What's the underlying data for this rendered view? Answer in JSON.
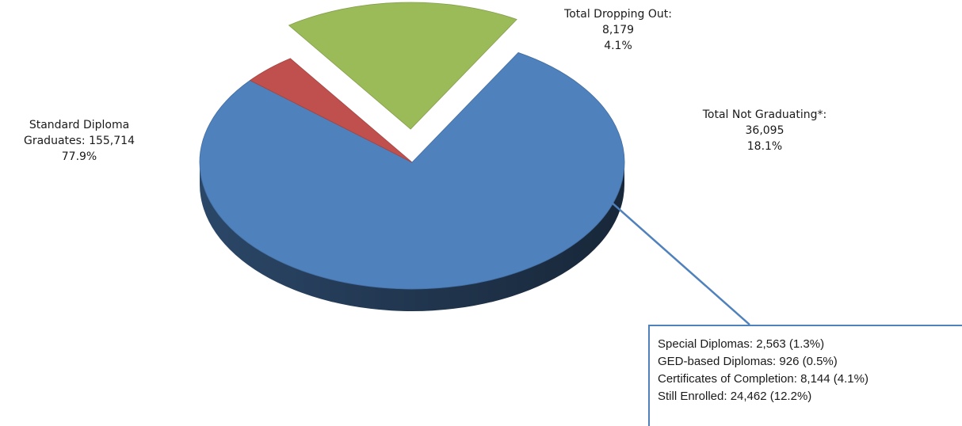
{
  "chart_data": {
    "type": "pie",
    "title": "",
    "slices": [
      {
        "label": "Standard Diploma Graduates",
        "value": 155714,
        "percent": 77.9,
        "color": "#4f81bd"
      },
      {
        "label": "Total Dropping Out",
        "value": 8179,
        "percent": 4.1,
        "color": "#c0504d"
      },
      {
        "label": "Total Not Graduating*",
        "value": 36095,
        "percent": 18.1,
        "color": "#9bbb59",
        "exploded": true
      }
    ],
    "labels": {
      "standard": {
        "line1": "Standard Diploma",
        "line2": "Graduates: 155,714",
        "line3": "77.9%"
      },
      "dropout": {
        "line1": "Total Dropping Out:",
        "line2": "8,179",
        "line3": "4.1%"
      },
      "notgrad": {
        "line1": "Total Not Graduating*:",
        "line2": "36,095",
        "line3": "18.1%"
      }
    },
    "breakdown": [
      "Special Diplomas: 2,563 (1.3%)",
      "GED-based Diplomas: 926 (0.5%)",
      "Certificates of Completion: 8,144 (4.1%)",
      "Still Enrolled: 24,462 (12.2%)"
    ]
  }
}
